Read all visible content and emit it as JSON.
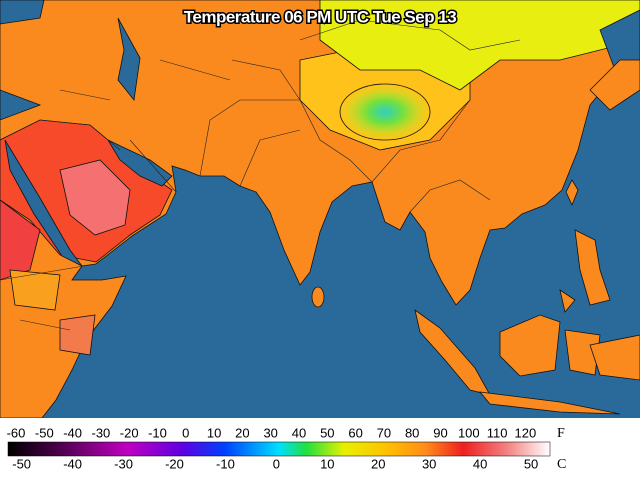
{
  "title": "Temperature 06 PM UTC Tue Sep 13",
  "legend": {
    "fahrenheit_unit": "F",
    "celsius_unit": "C",
    "fahrenheit_ticks": [
      -60,
      -50,
      -40,
      -30,
      -20,
      -10,
      0,
      10,
      20,
      30,
      40,
      50,
      60,
      70,
      80,
      90,
      100,
      110,
      120
    ],
    "celsius_ticks": [
      -50,
      -40,
      -30,
      -20,
      -10,
      0,
      10,
      20,
      30,
      40,
      50
    ]
  }
}
